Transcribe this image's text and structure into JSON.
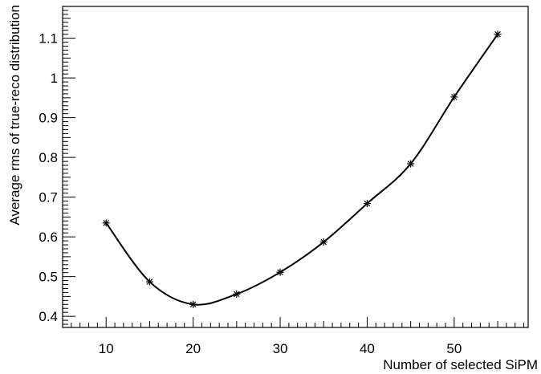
{
  "chart_data": {
    "type": "line",
    "xlabel": "Number of selected SiPM",
    "ylabel": "Average rms of true-reco distribution",
    "x": [
      10,
      15,
      20,
      25,
      30,
      35,
      40,
      45,
      50,
      55
    ],
    "y": [
      0.635,
      0.487,
      0.43,
      0.456,
      0.511,
      0.587,
      0.684,
      0.784,
      0.952,
      1.11
    ],
    "xlim": [
      5,
      58.5
    ],
    "ylim": [
      0.372,
      1.18
    ],
    "xticks": [
      10,
      20,
      30,
      40,
      50
    ],
    "xtick_labels": [
      "10",
      "20",
      "30",
      "40",
      "50"
    ],
    "yticks": [
      0.4,
      0.5,
      0.6,
      0.7,
      0.8,
      0.9,
      1.0,
      1.1
    ],
    "ytick_labels": [
      "0.4",
      "0.5",
      "0.6",
      "0.7",
      "0.8",
      "0.9",
      "1",
      "1.1"
    ],
    "marker": "asterisk",
    "smooth": true,
    "grid": false,
    "colors": {
      "line": "#000000",
      "axis": "#000000"
    }
  }
}
